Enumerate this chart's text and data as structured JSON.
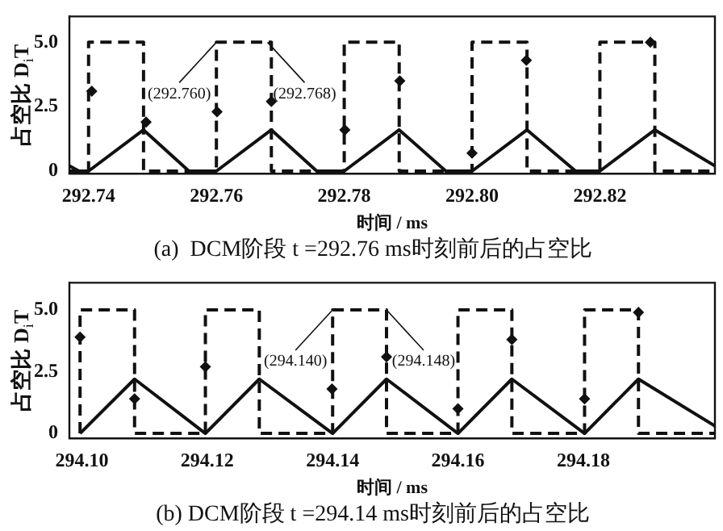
{
  "chart_data": [
    {
      "type": "line",
      "title": "(a)  DCM阶段 t =292.76 ms时刻前后的占空比",
      "xlabel": "时间 / ms",
      "ylabel": "占空比 D$_{i}$T",
      "xlim": [
        292.737,
        292.838
      ],
      "xticks": [
        292.74,
        292.76,
        292.78,
        {
          "value": 292.8,
          "label": "292.80"
        },
        292.82
      ],
      "ylim": [
        -0.1,
        6
      ],
      "yticks": [
        {
          "value": 0,
          "label": "0"
        },
        {
          "value": 2.5,
          "label": "2.5"
        },
        {
          "value": 5,
          "label": "5.0"
        }
      ],
      "series": [
        {
          "type": "line",
          "color": "#111111",
          "line_style": "dashed",
          "marker": "none",
          "x": [
            292.737,
            292.74,
            292.74,
            292.7486,
            292.7486,
            292.76,
            292.76,
            292.7686,
            292.7686,
            292.78,
            292.78,
            292.7886,
            292.7886,
            292.8,
            292.8,
            292.8086,
            292.8086,
            292.82,
            292.82,
            292.8286,
            292.8286,
            292.838
          ],
          "values": [
            0,
            0,
            5,
            5,
            0,
            0,
            5,
            5,
            0,
            0,
            5,
            5,
            0,
            0,
            5,
            5,
            0,
            0,
            5,
            5,
            0,
            0
          ]
        },
        {
          "type": "line",
          "color": "#111111",
          "line_style": "solid",
          "marker": "none",
          "x": [
            292.737,
            292.7385,
            292.74,
            292.7486,
            292.7557,
            292.76,
            292.7686,
            292.7757,
            292.78,
            292.7886,
            292.7959,
            292.8,
            292.8086,
            292.8162,
            292.82,
            292.8286,
            292.838
          ],
          "values": [
            0.2,
            0,
            0,
            1.6,
            0,
            0,
            1.6,
            0,
            0,
            1.6,
            0,
            0,
            1.6,
            0,
            0,
            1.6,
            0.2
          ]
        },
        {
          "type": "scatter",
          "color": "#111111",
          "marker": "diamond",
          "x": [
            292.7405,
            292.749,
            292.7601,
            292.7686,
            292.7801,
            292.7887,
            292.8,
            292.8085,
            292.8279
          ],
          "values": [
            3.1,
            1.9,
            2.3,
            2.7,
            1.6,
            3.5,
            0.7,
            4.3,
            5.0
          ]
        }
      ],
      "annotations": [
        {
          "text": "(292.760)",
          "x": 292.76,
          "y": 5
        },
        {
          "text": "(292.768)",
          "x": 292.768,
          "y": 5
        }
      ]
    },
    {
      "type": "line",
      "title": "(b) DCM阶段 t =294.14 ms时刻前后的占空比",
      "xlabel": "时间 / ms",
      "ylabel": "占空比 D$_{i}$T",
      "xlim": [
        294.098,
        294.201
      ],
      "xticks": [
        {
          "value": 294.1,
          "label": "294.10"
        },
        294.12,
        294.14,
        294.16,
        294.18
      ],
      "ylim": [
        -0.2,
        6.1
      ],
      "yticks": [
        {
          "value": 0,
          "label": "0"
        },
        {
          "value": 2.5,
          "label": "2.5"
        },
        {
          "value": 5,
          "label": "5.0"
        }
      ],
      "series": [
        {
          "type": "line",
          "color": "#111111",
          "line_style": "dashed",
          "marker": "none",
          "x": [
            294.0997,
            294.0997,
            294.1084,
            294.1084,
            294.1197,
            294.1197,
            294.1283,
            294.1283,
            294.14,
            294.14,
            294.1486,
            294.1486,
            294.16,
            294.16,
            294.1686,
            294.1686,
            294.1802,
            294.1802,
            294.1888,
            294.1888,
            294.201
          ],
          "values": [
            0,
            5,
            5,
            0,
            0,
            5,
            5,
            0,
            0,
            5,
            5,
            0,
            0,
            5,
            5,
            0,
            0,
            5,
            5,
            0,
            0
          ]
        },
        {
          "type": "line",
          "color": "#111111",
          "line_style": "solid",
          "marker": "none",
          "x": [
            294.0997,
            294.1084,
            294.1197,
            294.1283,
            294.14,
            294.1486,
            294.16,
            294.1686,
            294.1802,
            294.1888,
            294.201
          ],
          "values": [
            0,
            2.2,
            0,
            2.2,
            0,
            2.2,
            0,
            2.2,
            0,
            2.2,
            0.3
          ]
        },
        {
          "type": "scatter",
          "color": "#111111",
          "marker": "diamond",
          "x": [
            294.0997,
            294.1084,
            294.1197,
            294.1399,
            294.1486,
            294.16,
            294.1686,
            294.1802,
            294.1888
          ],
          "values": [
            3.9,
            1.4,
            2.7,
            1.8,
            3.1,
            1.0,
            3.8,
            1.4,
            4.9
          ]
        }
      ],
      "annotations": [
        {
          "text": "(294.140)",
          "x": 294.14,
          "y": 5
        },
        {
          "text": "(294.148)",
          "x": 294.1486,
          "y": 5
        }
      ]
    }
  ]
}
